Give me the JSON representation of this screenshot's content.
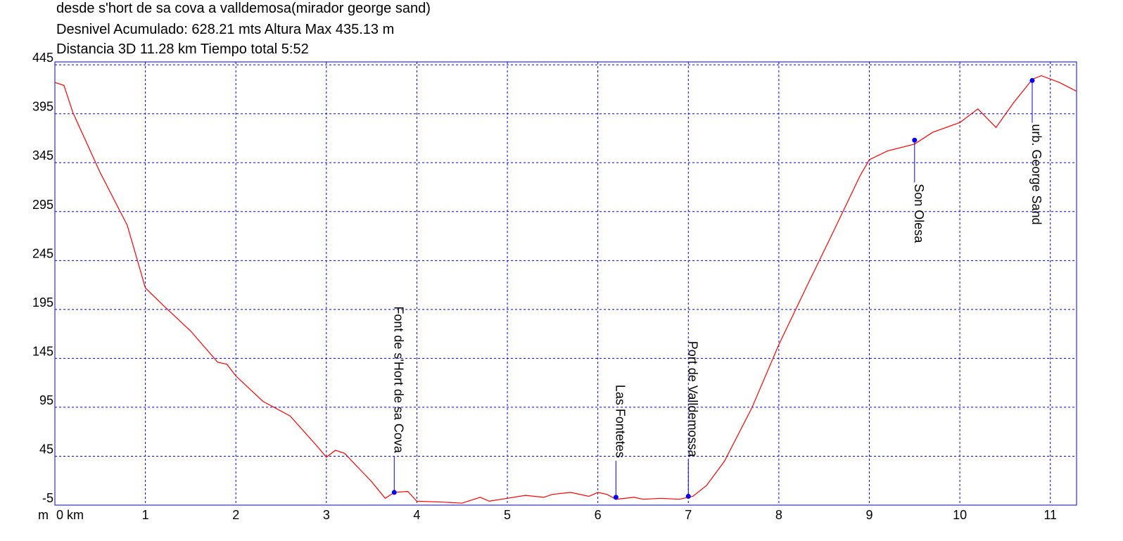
{
  "chart_data": {
    "type": "line",
    "title": "desde s'hort de sa cova a valldemosa(mirador george sand)",
    "subtitles": [
      "Desnivel Acumulado: 628.21 mts  Altura Max 435.13 m",
      "Distancia 3D 11.28 km  Tiempo total 5:52"
    ],
    "y_label": "m",
    "xlim": [
      0,
      11.29
    ],
    "ylim": [
      -5,
      448
    ],
    "xticks": [
      {
        "value": 0,
        "label": "0 km"
      },
      1,
      2,
      3,
      4,
      5,
      6,
      7,
      8,
      9,
      10,
      11
    ],
    "yticks": [
      -5,
      45,
      95,
      145,
      195,
      245,
      295,
      345,
      395,
      445
    ],
    "grid": true,
    "x": [
      0,
      0.1,
      0.2,
      0.5,
      0.8,
      1.0,
      1.2,
      1.5,
      1.8,
      1.9,
      2.0,
      2.3,
      2.6,
      2.9,
      3.0,
      3.1,
      3.2,
      3.5,
      3.65,
      3.75,
      3.9,
      4.0,
      4.3,
      4.5,
      4.7,
      4.8,
      5.0,
      5.2,
      5.4,
      5.5,
      5.7,
      5.9,
      6.0,
      6.1,
      6.2,
      6.4,
      6.5,
      6.7,
      6.9,
      7.05,
      7.2,
      7.4,
      7.7,
      8.0,
      8.3,
      8.6,
      8.9,
      9.0,
      9.2,
      9.5,
      9.7,
      10.0,
      10.2,
      10.4,
      10.6,
      10.8,
      10.9,
      11.1,
      11.29
    ],
    "series": [
      {
        "name": "Altura",
        "color": "#ff0000",
        "values": [
          427,
          424,
          396,
          335,
          281,
          217,
          199,
          173,
          141,
          139,
          127,
          101,
          86,
          55,
          44,
          51,
          48,
          19,
          2,
          8,
          9,
          -1,
          -2,
          -3,
          3,
          -1,
          2,
          5,
          3,
          6,
          8,
          4,
          8,
          6,
          1,
          3,
          1,
          2,
          1,
          4,
          15,
          40,
          94,
          159,
          217,
          274,
          332,
          348,
          357,
          364,
          376,
          386,
          400,
          381,
          407,
          430,
          434,
          427,
          418
        ]
      }
    ],
    "waypoints": [
      {
        "label": "Font de s'Hort de sa Cova",
        "x": 3.75,
        "y": 8
      },
      {
        "label": "Las Fontetes",
        "x": 6.2,
        "y": 3
      },
      {
        "label": "Port de Valldemossa",
        "x": 7.0,
        "y": 4
      },
      {
        "label": "Son Olesa",
        "x": 9.5,
        "y": 368
      },
      {
        "label": "urb. George Sand",
        "x": 10.8,
        "y": 429
      }
    ],
    "marker_color": "#0000ff"
  }
}
